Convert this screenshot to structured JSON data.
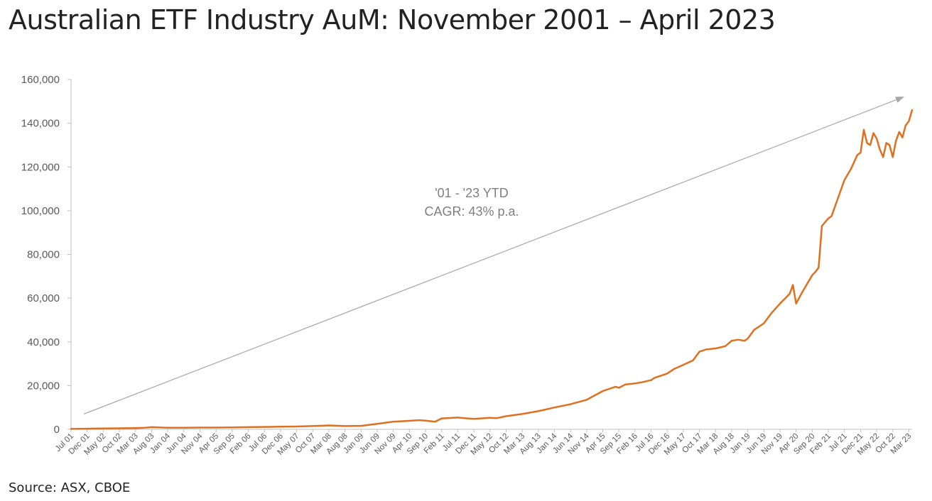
{
  "title": "Australian ETF Industry AuM: November 2001 – April 2023",
  "source": "Source: ASX, CBOE",
  "colors": {
    "series": "#E07020",
    "trend": "#A6A6A6",
    "axis": "#BFBFBF",
    "text": "#595959"
  },
  "chart_data": {
    "type": "line",
    "title": "Australian ETF Industry AuM: November 2001 – April 2023",
    "xlabel": "",
    "ylabel": "",
    "ylim": [
      0,
      160000
    ],
    "yticks": [
      "0",
      "20,000",
      "40,000",
      "60,000",
      "80,000",
      "100,000",
      "120,000",
      "140,000",
      "160,000"
    ],
    "grid": false,
    "legend": "none",
    "x_tick_labels": [
      "Jul 01",
      "Dec 01",
      "May 02",
      "Oct 02",
      "Mar 03",
      "Aug 03",
      "Jan 04",
      "Jun 04",
      "Nov 04",
      "Apr 05",
      "Sep 05",
      "Feb 06",
      "Jul 06",
      "Dec 06",
      "May 07",
      "Oct 07",
      "Mar 08",
      "Aug 08",
      "Jan 09",
      "Jun 09",
      "Nov 09",
      "Apr 10",
      "Sep 10",
      "Feb 11",
      "Jul 11",
      "Dec 11",
      "May 12",
      "Oct 12",
      "Mar 13",
      "Aug 13",
      "Jan 14",
      "Jun 14",
      "Nov 14",
      "Apr 15",
      "Sep 15",
      "Feb 16",
      "Jul 16",
      "Dec 16",
      "May 17",
      "Oct 17",
      "Mar 18",
      "Aug 18",
      "Jan 19",
      "Jun 19",
      "Nov 19",
      "Apr 20",
      "Sep 20",
      "Feb 21",
      "Jul 21",
      "Dec 21",
      "May 22",
      "Oct 22",
      "Mar 23"
    ],
    "x_start": "Jul 01",
    "x_end": "Apr 23",
    "series": [
      {
        "x": [
          "Jul 01",
          "Dec 01",
          "May 02",
          "Oct 02",
          "Mar 03",
          "Jun 03",
          "Aug 03",
          "Jan 04",
          "Jun 04",
          "Nov 04",
          "Apr 05",
          "Sep 05",
          "Feb 06",
          "Jul 06",
          "Dec 06",
          "May 07",
          "Oct 07",
          "Mar 08",
          "Aug 08",
          "Jan 09",
          "Jun 09",
          "Nov 09",
          "Apr 10",
          "Jul 10",
          "Sep 10",
          "Dec 10",
          "Feb 11",
          "Jul 11",
          "Oct 11",
          "Dec 11",
          "May 12",
          "Jul 12",
          "Oct 12",
          "Mar 13",
          "Aug 13",
          "Jan 14",
          "Jun 14",
          "Nov 14",
          "Apr 15",
          "Jun 15",
          "Aug 15",
          "Sep 15",
          "Nov 15",
          "Feb 16",
          "Apr 16",
          "Jul 16",
          "Aug 16",
          "Dec 16",
          "Feb 17",
          "May 17",
          "Aug 17",
          "Oct 17",
          "Dec 17",
          "Mar 18",
          "Jun 18",
          "Aug 18",
          "Oct 18",
          "Dec 18",
          "Jan 19",
          "Mar 19",
          "Jun 19",
          "Aug 19",
          "Nov 19",
          "Jan 20",
          "Feb 20",
          "Mar 20",
          "Apr 20",
          "Jun 20",
          "Sep 20",
          "Oct 20",
          "Nov 20",
          "Dec 20",
          "Feb 21",
          "Mar 21",
          "Jul 21",
          "Sep 21",
          "Nov 21",
          "Dec 21",
          "Jan 22",
          "Feb 22",
          "Mar 22",
          "Apr 22",
          "May 22",
          "Jun 22",
          "Jul 22",
          "Aug 22",
          "Sep 22",
          "Oct 22",
          "Nov 22",
          "Dec 22",
          "Jan 23",
          "Feb 23",
          "Mar 23",
          "Apr 23"
        ],
        "values": [
          200,
          300,
          400,
          500,
          600,
          700,
          1000,
          700,
          700,
          800,
          800,
          900,
          1000,
          1100,
          1200,
          1300,
          1500,
          1800,
          1500,
          1600,
          2500,
          3500,
          3900,
          4200,
          4000,
          3500,
          5000,
          5400,
          5000,
          4800,
          5300,
          5100,
          6000,
          7000,
          8300,
          10000,
          11500,
          13500,
          17500,
          18500,
          19500,
          19000,
          20500,
          21000,
          21500,
          22500,
          23500,
          25500,
          27500,
          29500,
          31500,
          35500,
          36500,
          37000,
          38000,
          40500,
          41000,
          40500,
          41500,
          45500,
          48500,
          52500,
          57500,
          60500,
          62000,
          66000,
          57500,
          63000,
          70500,
          72000,
          74000,
          93000,
          96500,
          97500,
          114000,
          119000,
          125500,
          126500,
          137000,
          131000,
          130000,
          135500,
          133000,
          128000,
          124500,
          131000,
          130000,
          124500,
          132000,
          136000,
          133500,
          139000,
          141000,
          146000
        ]
      }
    ],
    "trendline": {
      "from": {
        "x": "Jul 01",
        "y": 7000
      },
      "to": {
        "x": "Apr 23",
        "y": 152000
      },
      "arrow": true
    },
    "annotation": {
      "lines": [
        "'01 - '23 YTD",
        "CAGR: 43% p.a."
      ]
    }
  }
}
